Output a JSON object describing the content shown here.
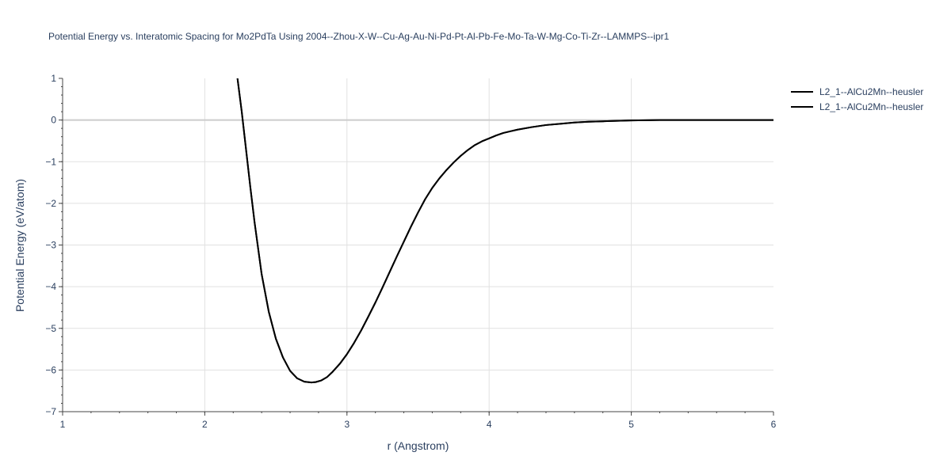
{
  "chart_data": {
    "type": "line",
    "title": "Potential Energy vs. Interatomic Spacing for Mo2PdTa Using 2004--Zhou-X-W--Cu-Ag-Au-Ni-Pd-Pt-Al-Pb-Fe-Mo-Ta-W-Mg-Co-Ti-Zr--LAMMPS--ipr1",
    "xlabel": "r (Angstrom)",
    "ylabel": "Potential Energy (eV/atom)",
    "xlim": [
      1,
      6
    ],
    "ylim": [
      -7,
      1
    ],
    "x_ticks": [
      "1",
      "2",
      "3",
      "4",
      "5",
      "6"
    ],
    "y_ticks": [
      "1",
      "0",
      "−1",
      "−2",
      "−3",
      "−4",
      "−5",
      "−6",
      "−7"
    ],
    "grid": true,
    "legend_position": "top-right",
    "series": [
      {
        "name": "L2_1--AlCu2Mn--heusler",
        "color": "#000000",
        "x": [
          2.23,
          2.26,
          2.29,
          2.32,
          2.35,
          2.4,
          2.45,
          2.5,
          2.55,
          2.6,
          2.65,
          2.7,
          2.75,
          2.78,
          2.82,
          2.86,
          2.9,
          2.95,
          3.0,
          3.05,
          3.1,
          3.15,
          3.2,
          3.25,
          3.3,
          3.35,
          3.4,
          3.45,
          3.5,
          3.55,
          3.6,
          3.65,
          3.7,
          3.75,
          3.8,
          3.85,
          3.9,
          3.95,
          4.0,
          4.05,
          4.1,
          4.15,
          4.2,
          4.3,
          4.4,
          4.5,
          4.6,
          4.7,
          4.8,
          4.9,
          5.0,
          5.1,
          5.2,
          5.4,
          5.6,
          5.8,
          6.0
        ],
        "values": [
          1.0,
          0.2,
          -0.7,
          -1.6,
          -2.45,
          -3.7,
          -4.6,
          -5.25,
          -5.7,
          -6.02,
          -6.2,
          -6.28,
          -6.3,
          -6.29,
          -6.25,
          -6.17,
          -6.04,
          -5.85,
          -5.62,
          -5.35,
          -5.05,
          -4.72,
          -4.38,
          -4.02,
          -3.65,
          -3.28,
          -2.92,
          -2.56,
          -2.22,
          -1.9,
          -1.63,
          -1.4,
          -1.2,
          -1.02,
          -0.86,
          -0.72,
          -0.6,
          -0.51,
          -0.44,
          -0.37,
          -0.31,
          -0.27,
          -0.23,
          -0.17,
          -0.12,
          -0.09,
          -0.06,
          -0.04,
          -0.03,
          -0.02,
          -0.01,
          -0.005,
          0.0,
          0.0,
          0.0,
          0.0,
          0.0
        ]
      },
      {
        "name": "L2_1--AlCu2Mn--heusler",
        "color": "#000000",
        "x": [
          2.23,
          2.26,
          2.29,
          2.32,
          2.35,
          2.4,
          2.45,
          2.5,
          2.55,
          2.6,
          2.65,
          2.7,
          2.75,
          2.78,
          2.82,
          2.86,
          2.9,
          2.95,
          3.0,
          3.05,
          3.1,
          3.15,
          3.2,
          3.25,
          3.3,
          3.35,
          3.4,
          3.45,
          3.5,
          3.55,
          3.6,
          3.65,
          3.7,
          3.75,
          3.8,
          3.85,
          3.9,
          3.95,
          4.0,
          4.05,
          4.1,
          4.15,
          4.2,
          4.3,
          4.4,
          4.5,
          4.6,
          4.7,
          4.8,
          4.9,
          5.0,
          5.1,
          5.2,
          5.4,
          5.6,
          5.8,
          6.0
        ],
        "values": [
          1.0,
          0.2,
          -0.7,
          -1.6,
          -2.45,
          -3.7,
          -4.6,
          -5.25,
          -5.7,
          -6.02,
          -6.2,
          -6.28,
          -6.3,
          -6.29,
          -6.25,
          -6.17,
          -6.04,
          -5.85,
          -5.62,
          -5.35,
          -5.05,
          -4.72,
          -4.38,
          -4.02,
          -3.65,
          -3.28,
          -2.92,
          -2.56,
          -2.22,
          -1.9,
          -1.63,
          -1.4,
          -1.2,
          -1.02,
          -0.86,
          -0.72,
          -0.6,
          -0.51,
          -0.44,
          -0.37,
          -0.31,
          -0.27,
          -0.23,
          -0.17,
          -0.12,
          -0.09,
          -0.06,
          -0.04,
          -0.03,
          -0.02,
          -0.01,
          -0.005,
          0.0,
          0.0,
          0.0,
          0.0,
          0.0
        ]
      }
    ]
  }
}
